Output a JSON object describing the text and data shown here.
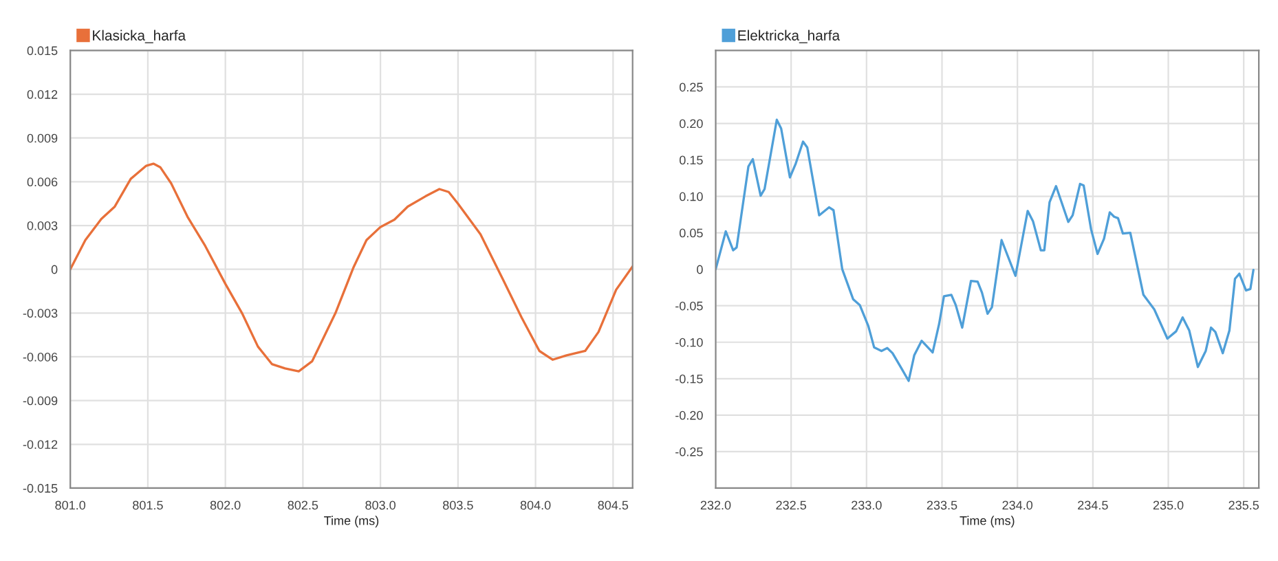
{
  "chart_data": [
    {
      "type": "line",
      "xlabel": "Time (ms)",
      "legend": "top left",
      "grid": true,
      "xlim": [
        801.0,
        804.626
      ],
      "ylim": [
        -0.015,
        0.015
      ],
      "xticks": [
        {
          "value": 801.0,
          "label": "801.0"
        },
        801.5,
        {
          "value": 802.0,
          "label": "802.0"
        },
        802.5,
        {
          "value": 803.0,
          "label": "803.0"
        },
        803.5,
        {
          "value": 804.0,
          "label": "804.0"
        },
        804.5
      ],
      "yticks": [
        -0.015,
        -0.012,
        -0.009,
        -0.006,
        -0.003,
        0,
        0.003,
        0.006,
        0.009,
        0.012,
        0.015
      ],
      "series": [
        {
          "name": "Klasicka_harfa",
          "color": "#e8703a",
          "x": [
            801.0,
            801.097,
            801.2,
            801.287,
            801.39,
            801.49,
            801.536,
            801.58,
            801.65,
            801.756,
            801.87,
            802.0,
            802.107,
            802.21,
            802.3,
            802.385,
            802.473,
            802.56,
            802.71,
            802.825,
            802.91,
            803.0,
            803.09,
            803.176,
            803.29,
            803.38,
            803.44,
            803.5,
            803.645,
            803.79,
            803.91,
            804.025,
            804.11,
            804.2,
            804.32,
            804.406,
            804.52,
            804.626
          ],
          "values": [
            0,
            0.002,
            0.00345,
            0.0043,
            0.0062,
            0.0071,
            0.00724,
            0.007,
            0.0059,
            0.0036,
            0.0016,
            -0.001,
            -0.003,
            -0.0053,
            -0.0065,
            -0.0068,
            -0.007,
            -0.0063,
            -0.003,
            0.0001,
            0.002,
            0.0029,
            0.0034,
            0.0043,
            0.005,
            0.0055,
            0.0053,
            0.0045,
            0.0024,
            -0.0007,
            -0.0033,
            -0.0056,
            -0.0062,
            -0.0059,
            -0.0056,
            -0.0043,
            -0.0014,
            0.0002
          ]
        }
      ]
    },
    {
      "type": "line",
      "xlabel": "Time (ms)",
      "legend": "top left",
      "grid": true,
      "xlim": [
        232.0,
        235.6
      ],
      "ylim": [
        -0.3,
        0.3
      ],
      "xticks": [
        {
          "value": 232.0,
          "label": "232.0"
        },
        232.5,
        {
          "value": 233.0,
          "label": "233.0"
        },
        233.5,
        {
          "value": 234.0,
          "label": "234.0"
        },
        234.5,
        {
          "value": 235.0,
          "label": "235.0"
        },
        235.5
      ],
      "yticks": [
        -0.25,
        {
          "value": -0.2,
          "label": "-0.20"
        },
        -0.15,
        {
          "value": -0.1,
          "label": "-0.10"
        },
        -0.05,
        0,
        0.05,
        {
          "value": 0.1,
          "label": "0.10"
        },
        0.15,
        {
          "value": 0.2,
          "label": "0.20"
        },
        0.25
      ],
      "series": [
        {
          "name": "Elektricka_harfa",
          "color": "#4f9fd8",
          "x": [
            232.0,
            232.067,
            232.116,
            232.139,
            232.217,
            232.246,
            232.298,
            232.324,
            232.405,
            232.434,
            232.492,
            232.529,
            232.579,
            232.607,
            232.686,
            232.752,
            232.781,
            232.839,
            232.911,
            232.955,
            233.012,
            233.05,
            233.099,
            233.137,
            233.172,
            233.229,
            233.279,
            233.316,
            233.365,
            233.438,
            233.481,
            233.513,
            233.562,
            233.591,
            233.634,
            233.692,
            233.736,
            233.765,
            233.802,
            233.831,
            233.895,
            233.987,
            234.068,
            234.103,
            234.155,
            234.178,
            234.213,
            234.256,
            234.337,
            234.366,
            234.415,
            234.439,
            234.488,
            234.531,
            234.574,
            234.612,
            234.641,
            234.667,
            234.699,
            234.748,
            234.835,
            234.907,
            234.994,
            235.052,
            235.095,
            235.139,
            235.196,
            235.248,
            235.283,
            235.312,
            235.361,
            235.405,
            235.442,
            235.471,
            235.515,
            235.544,
            235.564
          ],
          "values": [
            0,
            0.052,
            0.026,
            0.03,
            0.141,
            0.151,
            0.101,
            0.11,
            0.205,
            0.193,
            0.126,
            0.144,
            0.175,
            0.167,
            0.074,
            0.085,
            0.081,
            0.0,
            -0.041,
            -0.049,
            -0.078,
            -0.107,
            -0.112,
            -0.108,
            -0.115,
            -0.135,
            -0.153,
            -0.118,
            -0.098,
            -0.114,
            -0.075,
            -0.037,
            -0.035,
            -0.049,
            -0.08,
            -0.016,
            -0.017,
            -0.032,
            -0.061,
            -0.052,
            0.04,
            -0.009,
            0.08,
            0.066,
            0.026,
            0.026,
            0.092,
            0.114,
            0.065,
            0.074,
            0.117,
            0.115,
            0.055,
            0.021,
            0.042,
            0.078,
            0.072,
            0.07,
            0.049,
            0.05,
            -0.035,
            -0.055,
            -0.095,
            -0.085,
            -0.066,
            -0.084,
            -0.134,
            -0.112,
            -0.08,
            -0.086,
            -0.115,
            -0.084,
            -0.013,
            -0.006,
            -0.029,
            -0.027,
            -0.001
          ]
        }
      ]
    }
  ]
}
